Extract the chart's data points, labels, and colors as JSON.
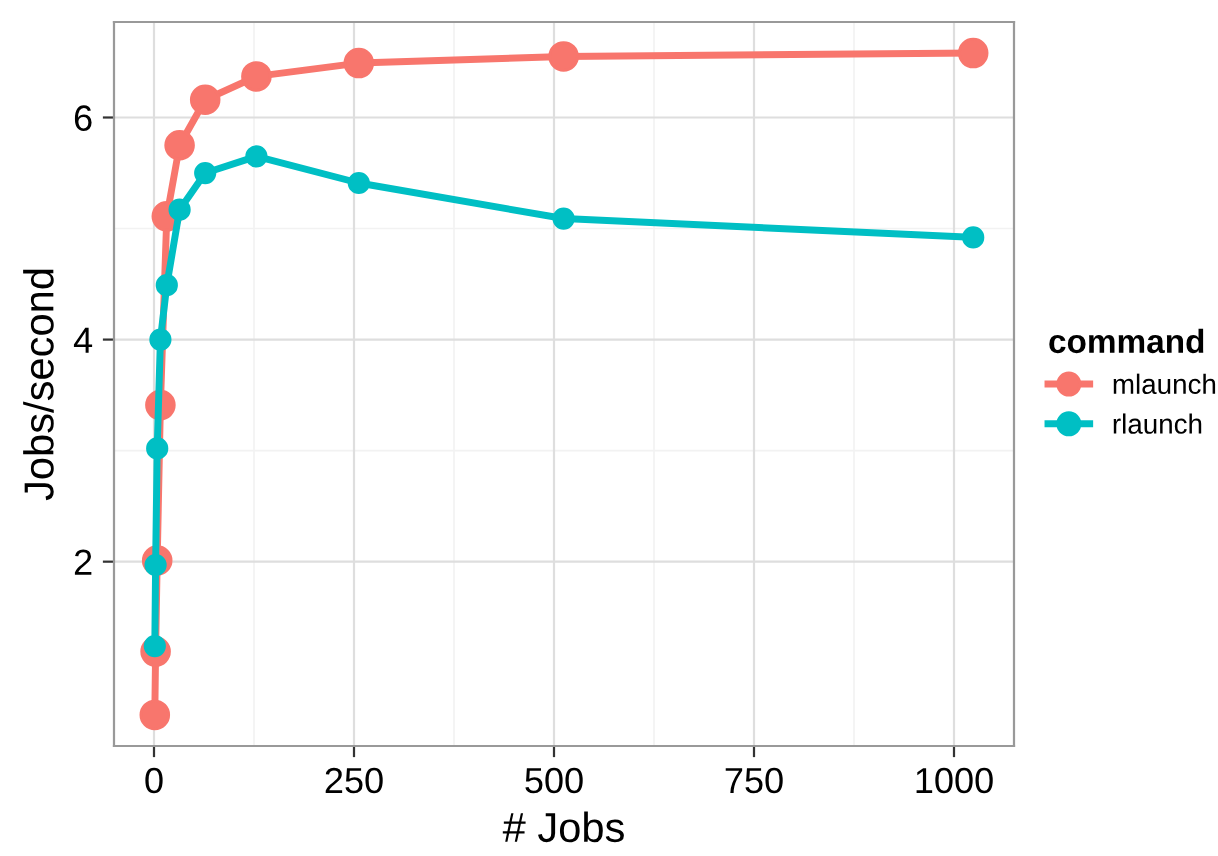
{
  "chart_data": {
    "type": "line",
    "xlabel": "# Jobs",
    "ylabel": "Jobs/second",
    "legend_title": "command",
    "legend": "right",
    "grid": true,
    "marker": "circle",
    "line_style": "solid",
    "x": [
      1,
      2,
      4,
      8,
      16,
      32,
      64,
      128,
      256,
      512,
      1024
    ],
    "xlim": [
      -50,
      1075
    ],
    "xticks": [
      0,
      250,
      500,
      750,
      1000
    ],
    "ylim": [
      0.34,
      6.86
    ],
    "yticks": [
      2,
      4,
      6
    ],
    "series": [
      {
        "name": "mlaunch",
        "color": "#f8766d",
        "values": [
          0.62,
          1.19,
          2.01,
          3.41,
          5.11,
          5.75,
          6.16,
          6.37,
          6.49,
          6.55,
          6.58
        ]
      },
      {
        "name": "rlaunch",
        "color": "#00bfc4",
        "values": [
          1.24,
          1.97,
          3.02,
          4.0,
          4.49,
          5.17,
          5.5,
          5.65,
          5.41,
          5.09,
          4.92
        ]
      }
    ]
  }
}
